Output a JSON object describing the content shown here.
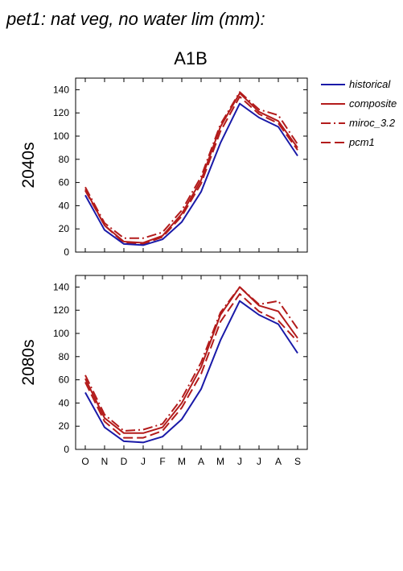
{
  "figure": {
    "title": "pet1: nat veg, no water lim (mm):",
    "scenario": "A1B"
  },
  "legend": {
    "placement": "top-right, outside plots",
    "entries": [
      {
        "label": "historical",
        "color": "#1a1aa8",
        "dash": "solid"
      },
      {
        "label": "composite",
        "color": "#b31b1b",
        "dash": "solid"
      },
      {
        "label": "miroc_3.2",
        "color": "#b31b1b",
        "dash": "dash-dot"
      },
      {
        "label": "pcm1",
        "color": "#b31b1b",
        "dash": "dashed"
      }
    ]
  },
  "chart_data": [
    {
      "type": "line",
      "ylabel": "2040s",
      "categories": [
        "O",
        "N",
        "D",
        "J",
        "F",
        "M",
        "A",
        "M",
        "J",
        "J",
        "A",
        "S"
      ],
      "ylim": [
        0,
        150
      ],
      "yticks": [
        0,
        20,
        40,
        60,
        80,
        100,
        120,
        140
      ],
      "series": [
        {
          "name": "historical",
          "values": [
            49,
            19,
            7,
            6,
            11,
            26,
            52,
            94,
            128,
            116,
            108,
            83
          ]
        },
        {
          "name": "composite",
          "values": [
            54,
            23,
            9,
            8,
            14,
            33,
            62,
            108,
            137,
            121,
            113,
            90
          ]
        },
        {
          "name": "miroc_3.2",
          "values": [
            56,
            25,
            12,
            12,
            17,
            36,
            65,
            110,
            138,
            123,
            118,
            93
          ]
        },
        {
          "name": "pcm1",
          "values": [
            53,
            23,
            8,
            7,
            13,
            31,
            59,
            104,
            134,
            119,
            111,
            88
          ]
        }
      ]
    },
    {
      "type": "line",
      "ylabel": "2080s",
      "categories": [
        "O",
        "N",
        "D",
        "J",
        "F",
        "M",
        "A",
        "M",
        "J",
        "J",
        "A",
        "S"
      ],
      "ylim": [
        0,
        150
      ],
      "yticks": [
        0,
        20,
        40,
        60,
        80,
        100,
        120,
        140
      ],
      "series": [
        {
          "name": "historical",
          "values": [
            49,
            19,
            7,
            6,
            11,
            26,
            52,
            94,
            128,
            116,
            108,
            83
          ]
        },
        {
          "name": "composite",
          "values": [
            61,
            27,
            14,
            14,
            19,
            40,
            71,
            116,
            140,
            124,
            119,
            96
          ]
        },
        {
          "name": "miroc_3.2",
          "values": [
            64,
            30,
            16,
            17,
            22,
            44,
            75,
            118,
            140,
            125,
            128,
            104
          ]
        },
        {
          "name": "pcm1",
          "values": [
            58,
            24,
            10,
            10,
            16,
            36,
            65,
            110,
            134,
            119,
            111,
            93
          ]
        }
      ]
    }
  ]
}
